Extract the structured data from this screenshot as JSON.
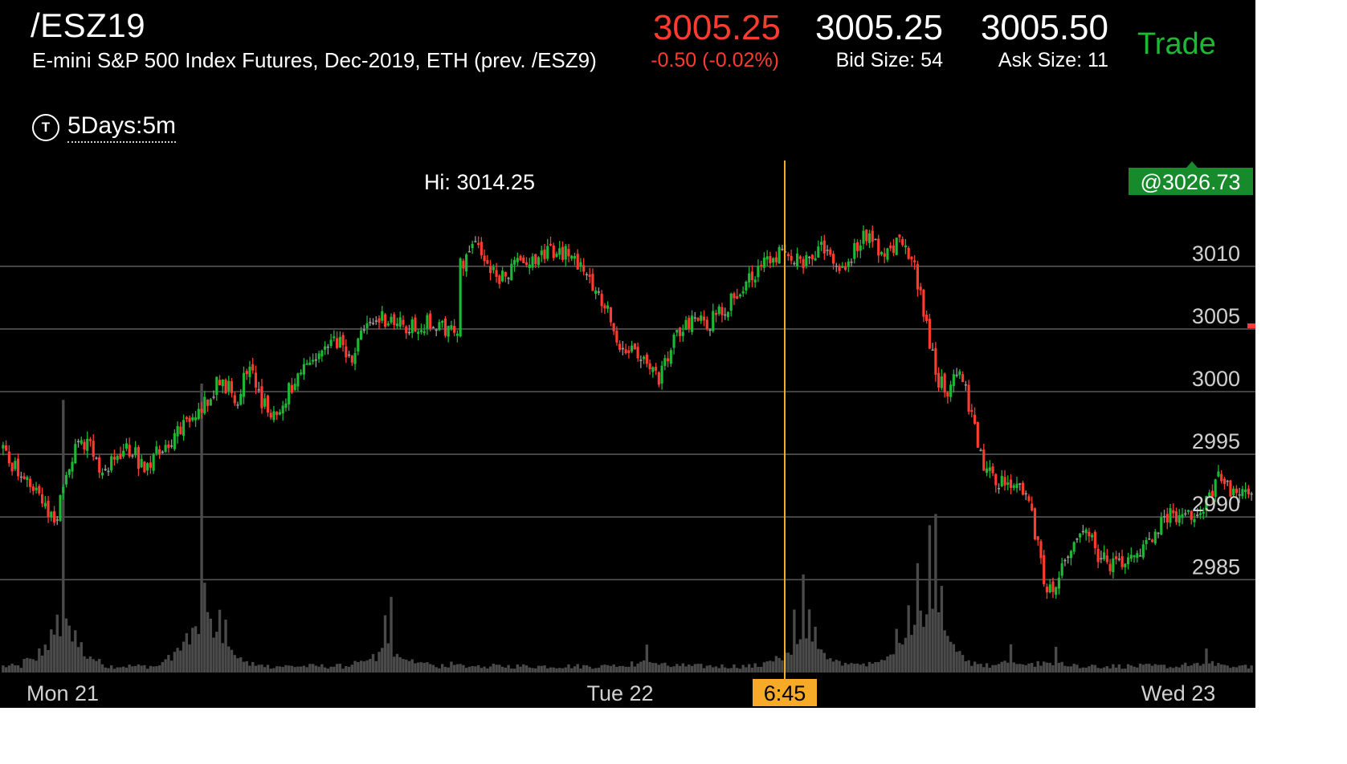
{
  "header": {
    "symbol": "/ESZ19",
    "description": "E-mini S&P 500 Index Futures, Dec-2019, ETH (prev. /ESZ9)",
    "last_price": "3005.25",
    "change": "-0.50 (-0.02%)",
    "bid": "3005.25",
    "bid_size": "Bid Size: 54",
    "ask": "3005.50",
    "ask_size": "Ask Size: 11",
    "trade_label": "Trade"
  },
  "timeframe": {
    "label": "5Days:5m",
    "icon_letter": "T",
    "icon": "timeframe-t-icon"
  },
  "colors": {
    "up": "#1db935",
    "down": "#ff3b30",
    "volume": "#4a4a4a",
    "gridline": "#555555",
    "crosshair": "#f7a928",
    "price_tag_bg": "#178a2c"
  },
  "chart_data": {
    "type": "candlestick",
    "interval": "5m",
    "title": "",
    "ylim": [
      2979,
      3021
    ],
    "y_ticks": [
      "3010",
      "3005",
      "3000",
      "2995",
      "2990",
      "2985"
    ],
    "x_labels": [
      "Mon 21",
      "Tue 22",
      "Wed 23"
    ],
    "annotations": {
      "hi_label": "Hi: 3014.25",
      "price_tag": "@3026.73",
      "crosshair_time": "6:45"
    },
    "price_path": [
      [
        0,
        2995.5
      ],
      [
        5,
        2993.5
      ],
      [
        10,
        2992
      ],
      [
        14,
        2991.5
      ],
      [
        17,
        2989
      ],
      [
        21,
        2994
      ],
      [
        25,
        2996
      ],
      [
        29,
        2995.5
      ],
      [
        33,
        2993
      ],
      [
        38,
        2995
      ],
      [
        43,
        2995.5
      ],
      [
        46,
        2994
      ],
      [
        51,
        2995
      ],
      [
        57,
        2996.5
      ],
      [
        64,
        2998
      ],
      [
        72,
        3001
      ],
      [
        78,
        2999.5
      ],
      [
        82,
        3002.5
      ],
      [
        86,
        2999
      ],
      [
        91,
        2998
      ],
      [
        96,
        3000.5
      ],
      [
        104,
        3002.5
      ],
      [
        110,
        3004
      ],
      [
        116,
        3003
      ],
      [
        121,
        3005
      ],
      [
        126,
        3006
      ],
      [
        134,
        3005
      ],
      [
        142,
        3005.5
      ],
      [
        147,
        3005
      ],
      [
        151,
        3004.5
      ],
      [
        152,
        3010
      ],
      [
        155,
        3011
      ],
      [
        158,
        3012
      ],
      [
        161,
        3010
      ],
      [
        166,
        3009
      ],
      [
        172,
        3010.5
      ],
      [
        180,
        3011
      ],
      [
        188,
        3011
      ],
      [
        194,
        3009.5
      ],
      [
        200,
        3007
      ],
      [
        205,
        3004
      ],
      [
        209,
        3003
      ],
      [
        214,
        3002
      ],
      [
        218,
        3001
      ],
      [
        223,
        3004
      ],
      [
        229,
        3006
      ],
      [
        235,
        3005.5
      ],
      [
        241,
        3007
      ],
      [
        247,
        3009
      ],
      [
        254,
        3010.5
      ],
      [
        260,
        3011.5
      ],
      [
        266,
        3010
      ],
      [
        273,
        3011.5
      ],
      [
        279,
        3010
      ],
      [
        286,
        3012.5
      ],
      [
        292,
        3011
      ],
      [
        298,
        3012
      ],
      [
        303,
        3010
      ],
      [
        307,
        3005
      ],
      [
        311,
        3001
      ],
      [
        314,
        3000
      ],
      [
        318,
        3002
      ],
      [
        322,
        2998
      ],
      [
        326,
        2994
      ],
      [
        330,
        2993
      ],
      [
        334,
        2992.5
      ],
      [
        338,
        2992.5
      ],
      [
        342,
        2990
      ],
      [
        346,
        2985
      ],
      [
        349,
        2983.5
      ],
      [
        352,
        2986
      ],
      [
        356,
        2988
      ],
      [
        360,
        2989
      ],
      [
        364,
        2987
      ],
      [
        368,
        2986
      ],
      [
        372,
        2986
      ],
      [
        376,
        2986.5
      ],
      [
        380,
        2987.5
      ],
      [
        384,
        2989
      ],
      [
        388,
        2990.5
      ],
      [
        392,
        2990
      ],
      [
        396,
        2990
      ],
      [
        400,
        2991
      ],
      [
        404,
        2993
      ],
      [
        408,
        2992
      ],
      [
        412,
        2992
      ],
      [
        415,
        2992
      ]
    ],
    "volume_spikes": [
      [
        20,
        18
      ],
      [
        66,
        22
      ],
      [
        72,
        2.4
      ],
      [
        74,
        1.6
      ],
      [
        127,
        2.6
      ],
      [
        129,
        4.3
      ],
      [
        149,
        0.2
      ],
      [
        214,
        1.6
      ],
      [
        263,
        2.6
      ],
      [
        266,
        5.4
      ],
      [
        268,
        2.2
      ],
      [
        270,
        1.6
      ],
      [
        297,
        1.8
      ],
      [
        301,
        2.4
      ],
      [
        304,
        4.8
      ],
      [
        308,
        7.2
      ],
      [
        310,
        8.6
      ],
      [
        312,
        3.8
      ],
      [
        335,
        1.6
      ],
      [
        350,
        1.2
      ],
      [
        400,
        1.1
      ]
    ]
  }
}
